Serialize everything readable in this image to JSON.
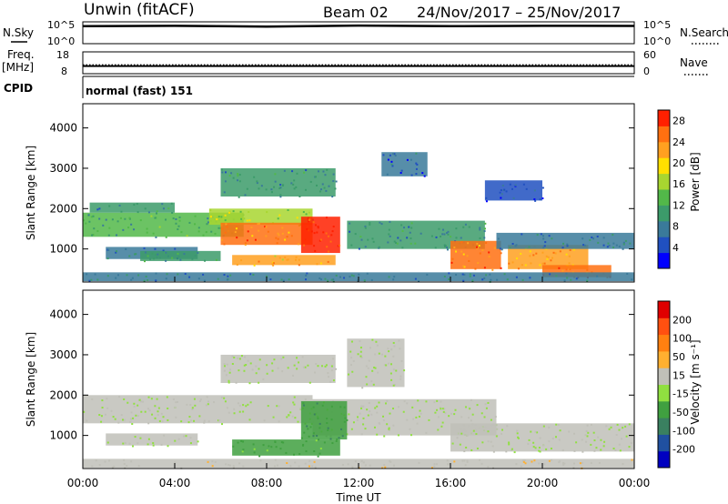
{
  "header": {
    "radar": "Unwin (fitACF)",
    "beam": "Beam 02",
    "date_range": "24/Nov/2017 – 25/Nov/2017"
  },
  "nsky_panel": {
    "label": "N.Sky",
    "left_ticks": [
      "10^5",
      "10^0"
    ],
    "right_ticks": [
      "10^5",
      "10^0"
    ],
    "right_label": "N.Search",
    "series": {
      "x": [
        0,
        4,
        8,
        12,
        16,
        20,
        24
      ],
      "y": [
        0.8,
        0.82,
        0.78,
        0.83,
        0.8,
        0.82,
        0.81
      ]
    }
  },
  "freq_panel": {
    "label": "Freq.",
    "unit": "[MHz]",
    "left_ticks": [
      "18",
      "8"
    ],
    "right_ticks": [
      "60",
      "0"
    ],
    "right_label": "Nave",
    "freq_series": {
      "x": [
        0,
        24
      ],
      "y": [
        11.5,
        11.5
      ]
    },
    "nave_series": {
      "x": [
        0,
        24
      ],
      "y": [
        24,
        24
      ]
    }
  },
  "cpid_panel": {
    "label": "CPID",
    "value": "normal (fast) 151"
  },
  "colors": {
    "power_scale": [
      "#0000ff",
      "#2050c0",
      "#3a7a9a",
      "#3c9b6a",
      "#52b849",
      "#a8d630",
      "#ffe000",
      "#ffa020",
      "#ff7010",
      "#ff2000"
    ],
    "velocity_scale": [
      "#0000c0",
      "#2050a0",
      "#3a8060",
      "#40a040",
      "#90e040",
      "#c0c0b8",
      "#ffb030",
      "#ff8010",
      "#ff5010",
      "#e00000"
    ]
  },
  "chart_data": [
    {
      "type": "heatmap",
      "title": "",
      "xlabel": "Time UT",
      "ylabel": "Slant Range [km]",
      "x_ticks": [
        "00:00",
        "04:00",
        "08:00",
        "12:00",
        "16:00",
        "20:00",
        "00:00"
      ],
      "xlim": [
        0,
        24
      ],
      "y_ticks": [
        1000,
        2000,
        3000,
        4000
      ],
      "ylim": [
        180,
        4600
      ],
      "colorbar": {
        "label": "Power [dB]",
        "ticks": [
          4,
          8,
          12,
          16,
          20,
          24,
          28
        ],
        "range": [
          0,
          30
        ]
      },
      "regions": [
        {
          "x": [
            0,
            7
          ],
          "y": [
            1300,
            1900
          ],
          "value": 12
        },
        {
          "x": [
            0.3,
            4
          ],
          "y": [
            1900,
            2150
          ],
          "value": 9
        },
        {
          "x": [
            1,
            5
          ],
          "y": [
            750,
            1050
          ],
          "value": 6
        },
        {
          "x": [
            5.5,
            10
          ],
          "y": [
            1600,
            2000
          ],
          "value": 16
        },
        {
          "x": [
            6,
            10
          ],
          "y": [
            1100,
            1650
          ],
          "value": 24
        },
        {
          "x": [
            9.5,
            11.2
          ],
          "y": [
            900,
            1800
          ],
          "value": 28
        },
        {
          "x": [
            6.5,
            11
          ],
          "y": [
            600,
            850
          ],
          "value": 21
        },
        {
          "x": [
            2.5,
            6
          ],
          "y": [
            700,
            950
          ],
          "value": 10
        },
        {
          "x": [
            11.5,
            17.5
          ],
          "y": [
            1000,
            1700
          ],
          "value": 9
        },
        {
          "x": [
            16,
            18.2
          ],
          "y": [
            500,
            1200
          ],
          "value": 24
        },
        {
          "x": [
            18.5,
            22
          ],
          "y": [
            500,
            1100
          ],
          "value": 22
        },
        {
          "x": [
            20,
            23
          ],
          "y": [
            300,
            600
          ],
          "value": 26
        },
        {
          "x": [
            18,
            24
          ],
          "y": [
            1000,
            1400
          ],
          "value": 7
        },
        {
          "x": [
            6,
            11
          ],
          "y": [
            2300,
            3000
          ],
          "value": 9
        },
        {
          "x": [
            13,
            15
          ],
          "y": [
            2800,
            3400
          ],
          "value": 6
        },
        {
          "x": [
            17.5,
            20
          ],
          "y": [
            2200,
            2700
          ],
          "value": 4
        },
        {
          "x": [
            0,
            24
          ],
          "y": [
            200,
            420
          ],
          "value": 8
        }
      ]
    },
    {
      "type": "heatmap",
      "title": "",
      "xlabel": "Time UT",
      "ylabel": "Slant Range [km]",
      "x_ticks": [
        "00:00",
        "04:00",
        "08:00",
        "12:00",
        "16:00",
        "20:00",
        "00:00"
      ],
      "xlim": [
        0,
        24
      ],
      "y_ticks": [
        1000,
        2000,
        3000,
        4000
      ],
      "ylim": [
        180,
        4600
      ],
      "colorbar": {
        "label": "Velocity [m s⁻¹]",
        "ticks": [
          200,
          100,
          50,
          15,
          -15,
          -50,
          -100,
          -200
        ],
        "range": [
          -250,
          250
        ]
      },
      "regions": [
        {
          "x": [
            0,
            10
          ],
          "y": [
            1300,
            2000
          ],
          "value": 0
        },
        {
          "x": [
            1,
            5
          ],
          "y": [
            750,
            1050
          ],
          "value": 0
        },
        {
          "x": [
            10,
            18
          ],
          "y": [
            1000,
            1900
          ],
          "value": 0
        },
        {
          "x": [
            16,
            24
          ],
          "y": [
            600,
            1300
          ],
          "value": 0
        },
        {
          "x": [
            6.5,
            11.2
          ],
          "y": [
            500,
            900
          ],
          "value": -70
        },
        {
          "x": [
            9.5,
            11.5
          ],
          "y": [
            900,
            1850
          ],
          "value": -90
        },
        {
          "x": [
            6,
            11
          ],
          "y": [
            2300,
            3000
          ],
          "value": 0
        },
        {
          "x": [
            11.5,
            14
          ],
          "y": [
            2200,
            3400
          ],
          "value": 0
        },
        {
          "x": [
            0,
            24
          ],
          "y": [
            200,
            420
          ],
          "value": 30
        }
      ]
    }
  ]
}
